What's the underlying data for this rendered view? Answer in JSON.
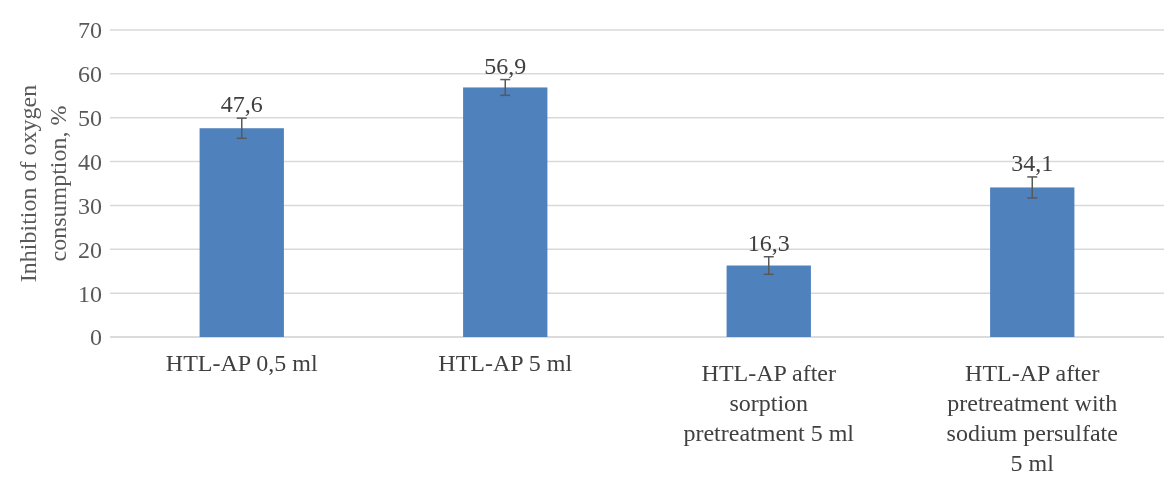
{
  "chart_data": {
    "type": "bar",
    "ylabel": "Inhibition of oxygen consumption, %",
    "categories": [
      "HTL-AP 0,5 ml",
      "HTL-AP 5 ml",
      "HTL-AP after sorption pretreatment  5 ml",
      "HTL-AP after pretreatment with sodium persulfate 5 ml"
    ],
    "values": [
      47.6,
      56.9,
      16.3,
      34.1
    ],
    "value_labels": [
      "47,6",
      "56,9",
      "16,3",
      "34,1"
    ],
    "errors": [
      2.3,
      1.8,
      2,
      2.4
    ],
    "color": "#4f81bd",
    "ylim": [
      0,
      70
    ],
    "yticks": [
      0,
      10,
      20,
      30,
      40,
      50,
      60,
      70
    ],
    "grid": "y"
  }
}
